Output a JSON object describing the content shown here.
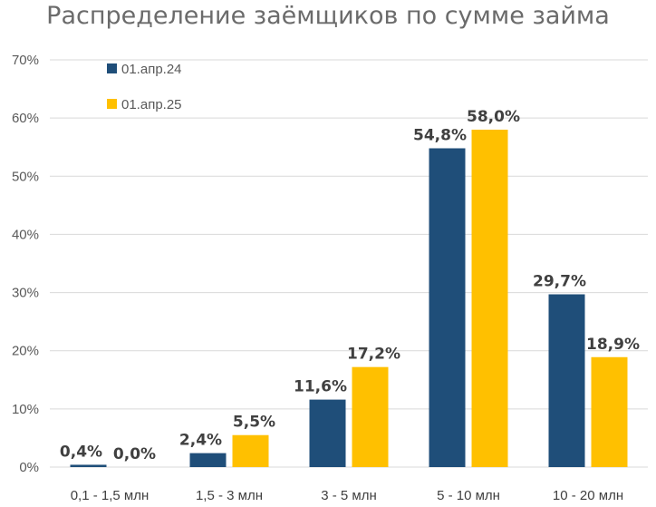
{
  "chart_data": {
    "type": "bar",
    "title": "Распределение заёмщиков по сумме займа",
    "categories": [
      "0,1 - 1,5 млн",
      "1,5 - 3 млн",
      "3 - 5 млн",
      "5 - 10 млн",
      "10 - 20 млн"
    ],
    "series": [
      {
        "name": "01.апр.24",
        "color": "#1f4e79",
        "values": [
          0.4,
          2.4,
          11.6,
          54.8,
          29.7
        ],
        "labels": [
          "0,4%",
          "2,4%",
          "11,6%",
          "54,8%",
          "29,7%"
        ]
      },
      {
        "name": "01.апр.25",
        "color": "#ffc000",
        "values": [
          0.0,
          5.5,
          17.2,
          58.0,
          18.9
        ],
        "labels": [
          "0,0%",
          "5,5%",
          "17,2%",
          "58,0%",
          "18,9%"
        ]
      }
    ],
    "ylim": [
      0,
      70
    ],
    "yticks": [
      "0%",
      "10%",
      "20%",
      "30%",
      "40%",
      "50%",
      "60%",
      "70%"
    ],
    "grid": true,
    "legend_position": "top-left"
  }
}
